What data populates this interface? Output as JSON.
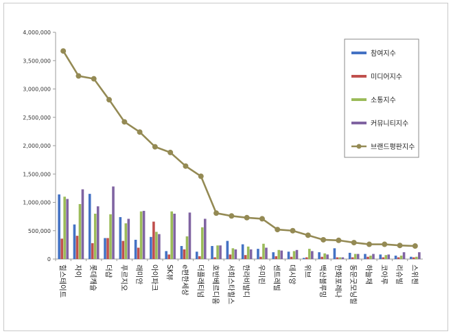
{
  "colors": {
    "participation": "#4472c4",
    "media": "#c0504d",
    "communication": "#9bbb59",
    "community": "#8064a2",
    "brand_index": "#948a54",
    "axis": "#9a9a9a",
    "grid": "#dddddd"
  },
  "chart_data": {
    "type": "bar",
    "categories": [
      "힐스테이트",
      "자이",
      "롯데캐슬",
      "더샵",
      "푸르지오",
      "래미안",
      "아이파크",
      "SK뷰",
      "e편한세상",
      "더플래티넘",
      "호반베르디움",
      "서희스타힐스",
      "한라비발디",
      "우미린",
      "센트레빌",
      "데시앙",
      "위브",
      "백산블루밍",
      "한화포레나",
      "동문굿모닝힐",
      "하늘채",
      "코아루",
      "리슈빌",
      "스위첸"
    ],
    "series": [
      {
        "name": "참여지수",
        "color": "#4472c4",
        "values": [
          1140000,
          610000,
          1150000,
          370000,
          740000,
          340000,
          390000,
          140000,
          230000,
          130000,
          230000,
          320000,
          260000,
          180000,
          120000,
          130000,
          20000,
          120000,
          190000,
          110000,
          90000,
          80000,
          60000,
          40000
        ]
      },
      {
        "name": "미디어지수",
        "color": "#c0504d",
        "values": [
          360000,
          410000,
          280000,
          370000,
          320000,
          200000,
          660000,
          80000,
          170000,
          50000,
          30000,
          80000,
          70000,
          40000,
          50000,
          40000,
          30000,
          40000,
          30000,
          30000,
          40000,
          30000,
          30000,
          30000
        ]
      },
      {
        "name": "소통지수",
        "color": "#9bbb59",
        "values": [
          1100000,
          970000,
          800000,
          790000,
          630000,
          840000,
          480000,
          840000,
          400000,
          560000,
          240000,
          190000,
          220000,
          270000,
          160000,
          140000,
          180000,
          100000,
          30000,
          90000,
          60000,
          70000,
          60000,
          40000
        ]
      },
      {
        "name": "커뮤니티지수",
        "color": "#8064a2",
        "values": [
          1060000,
          1230000,
          930000,
          1280000,
          710000,
          850000,
          440000,
          800000,
          820000,
          710000,
          240000,
          170000,
          170000,
          200000,
          150000,
          160000,
          140000,
          80000,
          30000,
          90000,
          90000,
          80000,
          120000,
          120000
        ]
      },
      {
        "name": "브랜드평판지수",
        "color": "#948a54",
        "type": "line",
        "values": [
          3670000,
          3230000,
          3180000,
          2810000,
          2420000,
          2240000,
          1980000,
          1880000,
          1640000,
          1460000,
          810000,
          760000,
          730000,
          710000,
          520000,
          500000,
          420000,
          340000,
          330000,
          290000,
          260000,
          260000,
          240000,
          230000
        ]
      }
    ],
    "yticks": [
      "0",
      "500,000",
      "1,000,000",
      "1,500,000",
      "2,000,000",
      "2,500,000",
      "3,000,000",
      "3,500,000",
      "4,000,000"
    ],
    "ylim": [
      0,
      4000000
    ],
    "grid": false,
    "legend": "top-right",
    "title": "",
    "xlabel": "",
    "ylabel": ""
  }
}
